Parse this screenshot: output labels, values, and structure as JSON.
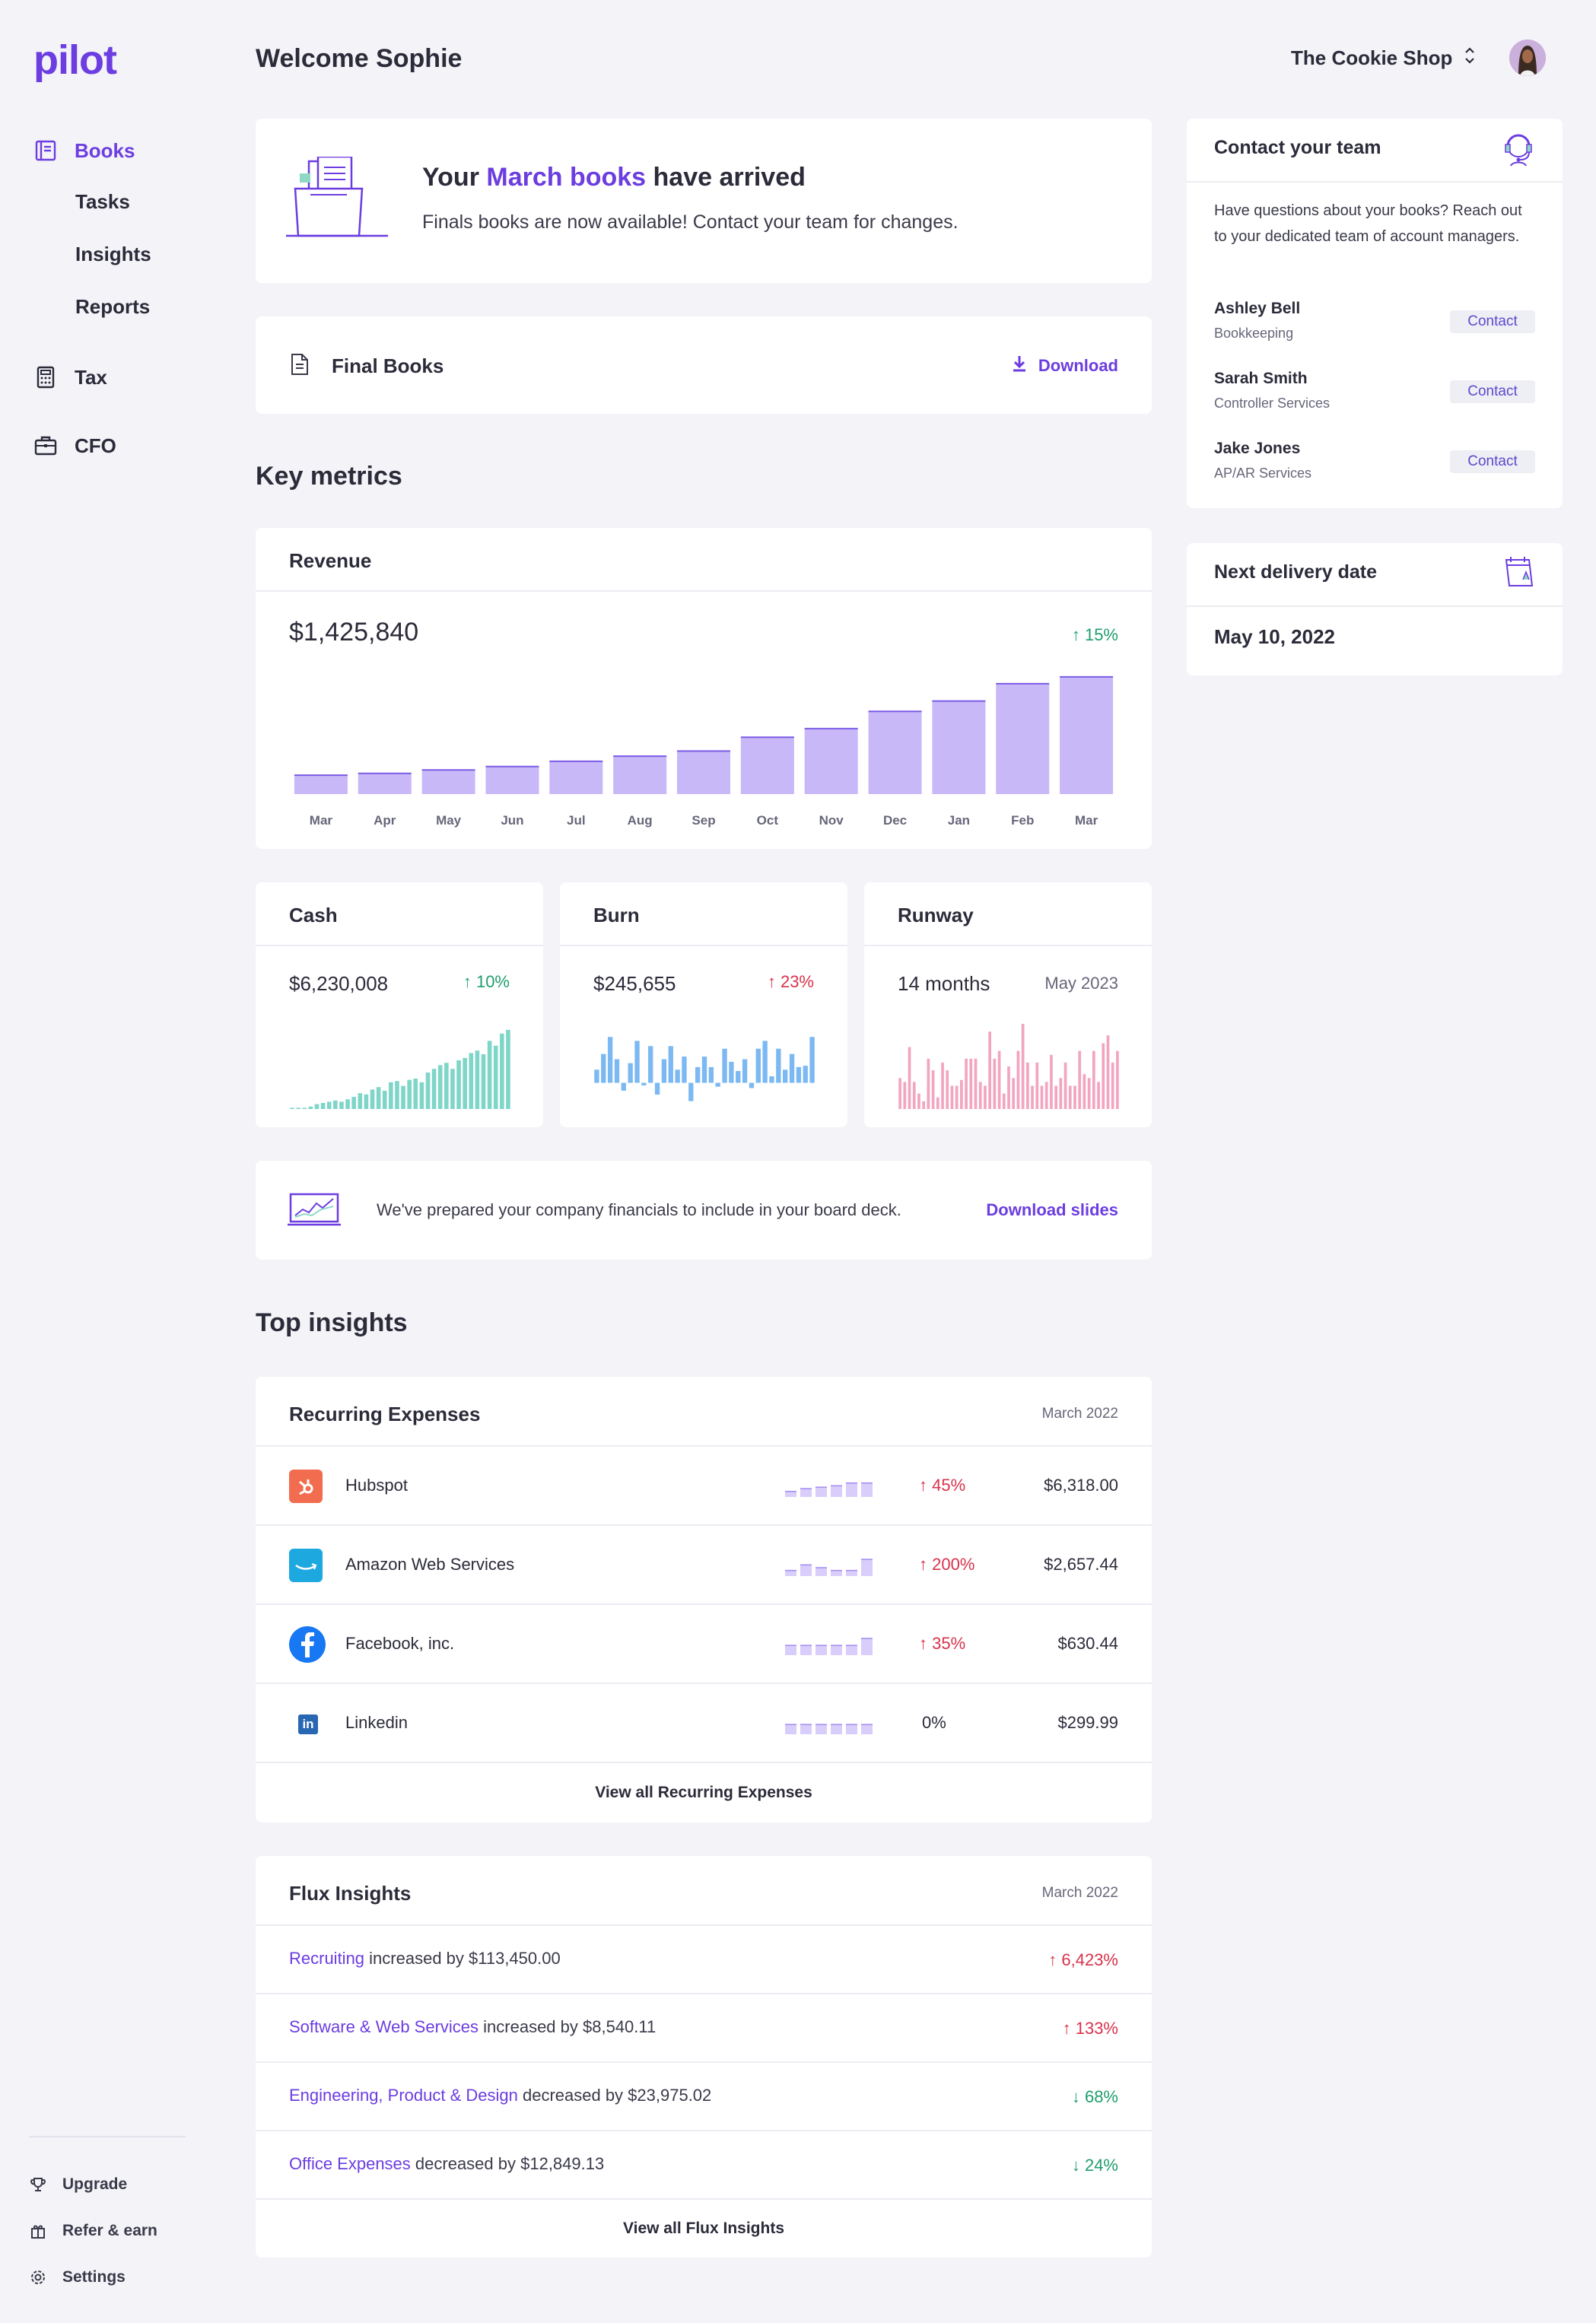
{
  "sidebar": {
    "logo": "pilot",
    "nav": [
      {
        "label": "Books",
        "icon": "book-icon"
      },
      {
        "label": "Tax",
        "icon": "calculator-icon"
      },
      {
        "label": "CFO",
        "icon": "briefcase-icon"
      }
    ],
    "books_sub": [
      "Tasks",
      "Insights",
      "Reports"
    ],
    "footer": [
      {
        "label": "Upgrade",
        "icon": "trophy-icon"
      },
      {
        "label": "Refer & earn",
        "icon": "gift-icon"
      },
      {
        "label": "Settings",
        "icon": "gear-icon"
      }
    ]
  },
  "header": {
    "welcome": "Welcome Sophie",
    "company": "The Cookie Shop"
  },
  "banner": {
    "title_pre": "Your ",
    "title_highlight": "March books",
    "title_post": " have arrived",
    "subtitle": "Finals books are now available! Contact your team for changes."
  },
  "final_books": {
    "label": "Final Books",
    "download": "Download"
  },
  "key_metrics": {
    "title": "Key metrics",
    "revenue": {
      "label": "Revenue",
      "value": "$1,425,840",
      "change": "↑ 15%"
    },
    "cash": {
      "label": "Cash",
      "value": "$6,230,008",
      "change": "↑ 10%"
    },
    "burn": {
      "label": "Burn",
      "value": "$245,655",
      "change": "↑ 23%"
    },
    "runway": {
      "label": "Runway",
      "value": "14 months",
      "date": "May 2023"
    }
  },
  "chart_data": [
    {
      "type": "bar",
      "categories": [
        "Mar",
        "Apr",
        "May",
        "Jun",
        "Jul",
        "Aug",
        "Sep",
        "Oct",
        "Nov",
        "Dec",
        "Jan",
        "Feb",
        "Mar"
      ],
      "values": [
        11,
        12,
        14,
        16,
        19,
        22,
        25,
        33,
        38,
        48,
        54,
        64,
        68
      ],
      "ylim": [
        0,
        75
      ]
    },
    {
      "type": "bar",
      "values": [
        1,
        1,
        1,
        2,
        4,
        5,
        6,
        7,
        6,
        8,
        10,
        13,
        12,
        16,
        18,
        15,
        22,
        23,
        19,
        24,
        25,
        22,
        30,
        33,
        36,
        38,
        33,
        40,
        42,
        46,
        48,
        45,
        56,
        52,
        62,
        65
      ],
      "ylim": [
        0,
        70
      ]
    },
    {
      "type": "bar",
      "values": [
        10,
        22,
        35,
        18,
        -6,
        15,
        32,
        -2,
        28,
        -9,
        18,
        28,
        10,
        20,
        -14,
        12,
        20,
        12,
        -3,
        26,
        16,
        9,
        18,
        -4,
        26,
        32,
        5,
        26,
        10,
        22,
        12,
        13,
        35
      ],
      "ylim": [
        -20,
        45
      ]
    },
    {
      "type": "bar",
      "values": [
        16,
        14,
        32,
        14,
        8,
        4,
        26,
        20,
        6,
        24,
        20,
        12,
        12,
        15,
        26,
        26,
        26,
        14,
        12,
        40,
        26,
        30,
        8,
        22,
        16,
        30,
        44,
        24,
        12,
        24,
        12,
        14,
        28,
        12,
        16,
        24,
        12,
        12,
        30,
        18,
        16,
        30,
        14,
        34,
        38,
        24,
        30
      ]
    }
  ],
  "board_deck": {
    "text": "We've prepared your company financials to include in your board deck.",
    "link": "Download slides"
  },
  "top_insights": {
    "title": "Top insights",
    "recurring": {
      "title": "Recurring Expenses",
      "date": "March 2022",
      "rows": [
        {
          "name": "Hubspot",
          "change": "↑ 45%",
          "amount": "$6,318.00",
          "icon": "hubspot-icon",
          "spark": [
            4,
            6,
            7,
            8,
            10,
            10
          ]
        },
        {
          "name": "Amazon Web Services",
          "change": "↑ 200%",
          "amount": "$2,657.44",
          "icon": "aws-icon",
          "spark": [
            4,
            8,
            6,
            4,
            4,
            12
          ]
        },
        {
          "name": "Facebook, inc.",
          "change": "↑ 35%",
          "amount": "$630.44",
          "icon": "facebook-icon",
          "spark": [
            7,
            7,
            7,
            7,
            7,
            12
          ]
        },
        {
          "name": "Linkedin",
          "change": "0%",
          "amount": "$299.99",
          "icon": "linkedin-icon",
          "spark": [
            7,
            7,
            7,
            7,
            7,
            7
          ]
        }
      ],
      "view_all": "View all Recurring Expenses"
    },
    "flux": {
      "title": "Flux Insights",
      "date": "March 2022",
      "rows": [
        {
          "category": "Recruiting",
          "text": " increased by $113,450.00",
          "change": "↑ 6,423%",
          "dir": "up"
        },
        {
          "category": "Software & Web Services",
          "text": " increased by $8,540.11",
          "change": "↑ 133%",
          "dir": "up"
        },
        {
          "category": "Engineering, Product & Design",
          "text": " decreased by $23,975.02",
          "change": "↓ 68%",
          "dir": "down"
        },
        {
          "category": "Office Expenses",
          "text": " decreased by $12,849.13",
          "change": "↓ 24%",
          "dir": "down"
        }
      ],
      "view_all": "View all Flux Insights"
    }
  },
  "team": {
    "title": "Contact your team",
    "description": "Have questions about your books? Reach out to your dedicated team of account managers.",
    "members": [
      {
        "name": "Ashley Bell",
        "role": "Bookkeeping",
        "button": "Contact"
      },
      {
        "name": "Sarah Smith",
        "role": "Controller Services",
        "button": "Contact"
      },
      {
        "name": "Jake Jones",
        "role": "AP/AR Services",
        "button": "Contact"
      }
    ]
  },
  "delivery": {
    "title": "Next delivery date",
    "date": "May 10, 2022"
  },
  "colors": {
    "accent": "#6c3de0",
    "revenue_bar": "#c9b8f7",
    "cash_bar": "#7fd6c8",
    "burn_bar": "#7cb9f2",
    "runway_bar": "#f2a5c0",
    "up_red": "#d8324b",
    "green": "#1f9e6e"
  }
}
